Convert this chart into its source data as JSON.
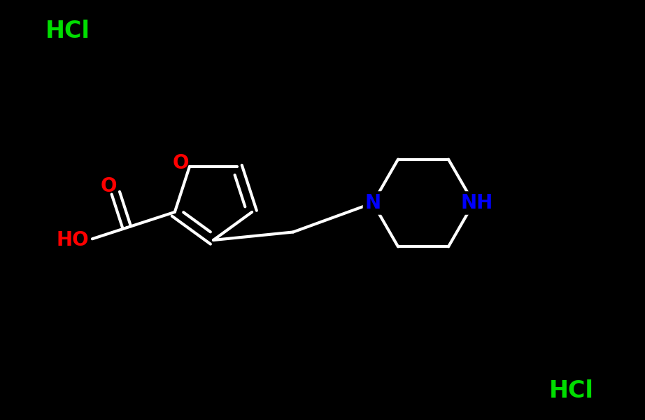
{
  "background_color": "#000000",
  "bond_width": 3.0,
  "figsize": [
    9.22,
    6.0
  ],
  "dpi": 100,
  "xlim": [
    0.0,
    9.22
  ],
  "ylim": [
    0.0,
    6.0
  ]
}
